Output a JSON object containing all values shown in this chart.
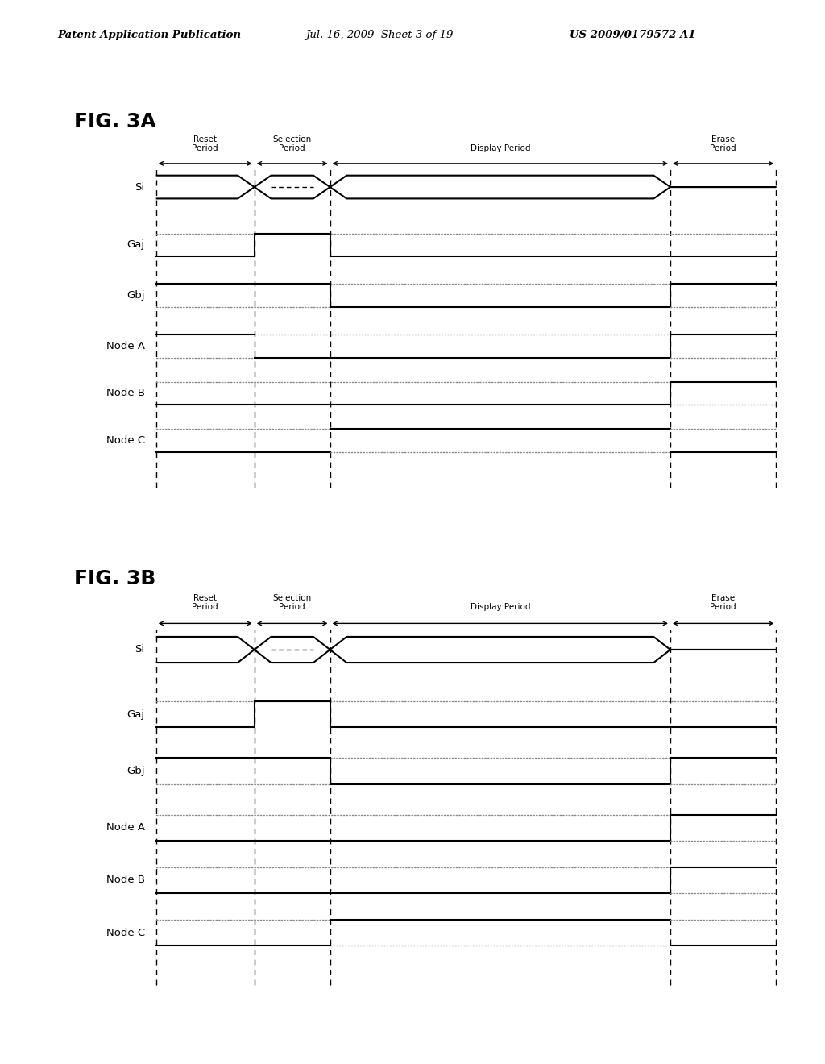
{
  "header_left": "Patent Application Publication",
  "header_mid": "Jul. 16, 2009  Sheet 3 of 19",
  "header_right": "US 2009/0179572 A1",
  "fig3a_title": "FIG. 3A",
  "fig3b_title": "FIG. 3B",
  "signals": [
    "Si",
    "Gaj",
    "Gbj",
    "Node A",
    "Node B",
    "Node C"
  ],
  "t0": 0.0,
  "t1": 1.3,
  "t2": 2.3,
  "t3": 6.8,
  "t4": 8.2,
  "background": "#ffffff",
  "lc": "#000000",
  "dc": "#888888"
}
